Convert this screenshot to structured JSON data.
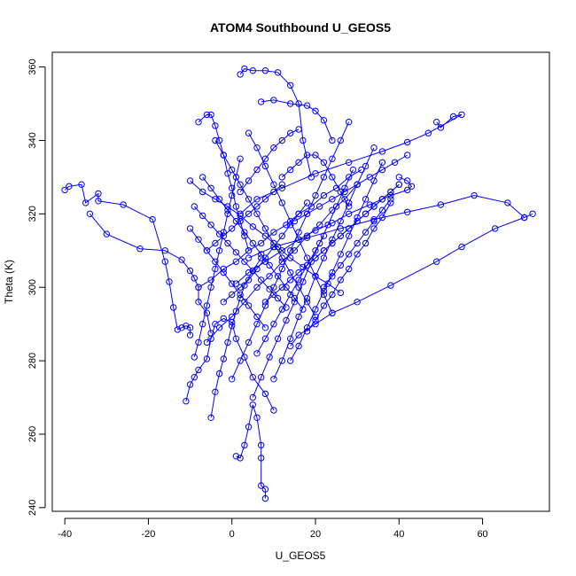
{
  "chart_data": {
    "type": "scatter",
    "title": "ATOM4 Southbound U_GEOS5",
    "xlabel": "U_GEOS5",
    "ylabel": "Theta (K)",
    "xlim": [
      -43,
      76
    ],
    "ylim": [
      239,
      364
    ],
    "xticks": [
      -40,
      -20,
      0,
      20,
      40,
      60
    ],
    "yticks": [
      240,
      260,
      280,
      300,
      320,
      340,
      360
    ],
    "grid": false,
    "marker": "open-circle",
    "connect_points": true,
    "color": "#0000ff",
    "series": [
      {
        "x": [
          -40,
          -39,
          -36,
          -35,
          -32,
          -32,
          -26,
          -19,
          -16,
          -15,
          -14,
          -13,
          -12,
          -11,
          -10,
          -10
        ],
        "y": [
          326.5,
          327.5,
          328,
          323,
          325.5,
          323.5,
          322.5,
          318.5,
          307,
          301.5,
          294.5,
          288.5,
          289,
          289.5,
          289,
          287
        ]
      },
      {
        "x": [
          -34,
          -30,
          -22,
          -16,
          -12,
          -10,
          -9,
          -8,
          -8,
          -6,
          -5
        ],
        "y": [
          320,
          314.5,
          310.5,
          310,
          307.5,
          304.5,
          302.5,
          300,
          296,
          293,
          287.5
        ]
      },
      {
        "x": [
          -11,
          -10,
          -9,
          -8,
          -6,
          -5,
          -4,
          -2,
          0,
          1,
          3,
          5,
          8,
          10
        ],
        "y": [
          269,
          273.5,
          275.5,
          277.5,
          280.5,
          286,
          290,
          291.5,
          290.5,
          286,
          281,
          275.5,
          271,
          266.5
        ]
      },
      {
        "x": [
          -5,
          -4,
          -3,
          -2,
          -1,
          0,
          1,
          2,
          3,
          5,
          7
        ],
        "y": [
          264.5,
          271.5,
          276.5,
          280.5,
          285,
          289.5,
          293.5,
          297,
          300.5,
          304.5,
          308
        ]
      },
      {
        "x": [
          1,
          2,
          3,
          4,
          5,
          6,
          7,
          7,
          7,
          8,
          8
        ],
        "y": [
          254,
          253.5,
          257,
          262,
          268,
          264.5,
          257,
          253.5,
          246,
          245,
          242.5
        ]
      },
      {
        "x": [
          2,
          3,
          5,
          8,
          11,
          14,
          16,
          17,
          19
        ],
        "y": [
          358,
          359.5,
          359,
          359,
          358.5,
          355,
          350,
          340,
          330
        ]
      },
      {
        "x": [
          7,
          10,
          14,
          18,
          20,
          22,
          24
        ],
        "y": [
          350.5,
          351,
          350,
          349.5,
          348,
          345.5,
          340
        ]
      },
      {
        "x": [
          -8,
          -6,
          -5,
          -4,
          -3,
          -2,
          -1,
          0,
          1,
          2,
          3,
          4
        ],
        "y": [
          345,
          347,
          347,
          344,
          340,
          336,
          331,
          327,
          322,
          318,
          314,
          310
        ]
      },
      {
        "x": [
          49,
          50,
          53,
          55,
          47,
          42,
          36,
          28,
          20,
          12,
          6,
          2
        ],
        "y": [
          345,
          343.5,
          346.5,
          347,
          342,
          339.5,
          337,
          334,
          331,
          327,
          324,
          320
        ]
      },
      {
        "x": [
          72,
          70,
          66,
          58,
          50,
          42,
          34,
          26,
          18,
          10,
          4
        ],
        "y": [
          320,
          319,
          323,
          325,
          322.5,
          320.5,
          318.5,
          316,
          313.5,
          311,
          308
        ]
      },
      {
        "x": [
          70,
          63,
          55,
          49,
          38,
          30,
          24,
          20,
          16,
          14
        ],
        "y": [
          319,
          316,
          311,
          307,
          300.5,
          296,
          293,
          290,
          287,
          284
        ]
      },
      {
        "x": [
          40,
          42,
          43,
          42,
          38,
          33,
          28,
          24,
          20,
          16,
          12,
          8,
          4,
          1
        ],
        "y": [
          330,
          329,
          327.5,
          326.5,
          325,
          322.5,
          320,
          317.5,
          315.5,
          313,
          310,
          307,
          304,
          301
        ]
      },
      {
        "x": [
          -10,
          -7,
          -4,
          -1,
          2,
          5,
          8,
          11,
          14,
          17,
          20,
          23,
          26
        ],
        "y": [
          329,
          326,
          324,
          322,
          319.5,
          316.5,
          314,
          311,
          308,
          305.5,
          303,
          301,
          298.5
        ]
      },
      {
        "x": [
          -9,
          -8,
          -7,
          -6,
          -5,
          -4,
          -3,
          -2,
          -1,
          0,
          1,
          2
        ],
        "y": [
          281,
          285,
          290,
          295,
          300,
          305,
          310,
          315,
          320,
          325,
          330,
          335
        ]
      },
      {
        "x": [
          0,
          2,
          4,
          6,
          8,
          10,
          12,
          14,
          16,
          18,
          20,
          22,
          24,
          26,
          28
        ],
        "y": [
          275,
          280,
          285,
          290,
          295,
          300,
          305,
          310,
          315,
          320,
          325,
          330,
          335,
          340,
          345
        ]
      },
      {
        "x": [
          5,
          7,
          9,
          11,
          13,
          15,
          17,
          19,
          21,
          23,
          25,
          27,
          29
        ],
        "y": [
          270,
          275.5,
          281,
          286,
          291,
          296,
          301.5,
          307,
          312,
          317,
          322,
          327,
          332
        ]
      },
      {
        "x": [
          10,
          12,
          14,
          16,
          18,
          20,
          22,
          24,
          26,
          28,
          30,
          32,
          34
        ],
        "y": [
          275,
          280,
          286,
          292,
          297,
          303,
          308,
          313,
          318,
          323,
          328,
          333,
          338
        ]
      },
      {
        "x": [
          14,
          16,
          18,
          20,
          22,
          24,
          26,
          28,
          30,
          32,
          34,
          36
        ],
        "y": [
          280,
          284,
          289,
          294,
          299,
          304,
          309,
          314,
          319,
          324,
          329,
          334
        ]
      },
      {
        "x": [
          -8,
          -5,
          -2,
          1,
          4,
          7,
          10,
          13,
          16,
          19,
          22,
          25,
          28,
          31
        ],
        "y": [
          300,
          302,
          305,
          307,
          310,
          312,
          315,
          317,
          320,
          322,
          325,
          327,
          330,
          332
        ]
      },
      {
        "x": [
          -6,
          -3,
          0,
          3,
          6,
          9,
          12,
          15,
          18,
          21,
          24,
          27,
          30
        ],
        "y": [
          285,
          289,
          292,
          296,
          300,
          303,
          307,
          310,
          314,
          317,
          321,
          324,
          328
        ]
      },
      {
        "x": [
          -4,
          -2,
          0,
          2,
          4,
          6,
          8,
          10,
          12,
          14,
          16,
          18,
          20
        ],
        "y": [
          340,
          336,
          332,
          328,
          324,
          320,
          316,
          312,
          308,
          304,
          300,
          296,
          292
        ]
      },
      {
        "x": [
          4,
          6,
          8,
          10,
          12,
          14,
          16,
          18,
          20,
          22,
          24
        ],
        "y": [
          342,
          338,
          333,
          328,
          323,
          318,
          313,
          308,
          303,
          298,
          293
        ]
      },
      {
        "x": [
          -10,
          -8,
          -6,
          -4,
          -2,
          0,
          2,
          4,
          6,
          8
        ],
        "y": [
          316,
          313,
          310,
          307,
          304,
          301,
          298,
          295,
          292,
          289
        ]
      },
      {
        "x": [
          -9,
          -7,
          -5,
          -3,
          -1,
          1,
          3,
          5,
          7,
          9,
          11,
          13
        ],
        "y": [
          322,
          319.5,
          317,
          314.5,
          312,
          309.5,
          307,
          304.5,
          302,
          299.5,
          297,
          294.5
        ]
      },
      {
        "x": [
          -7,
          -5,
          -3,
          -1,
          1,
          3,
          5,
          7,
          9,
          11,
          13,
          15,
          17
        ],
        "y": [
          330,
          327,
          324,
          321,
          318,
          315,
          312,
          309,
          306,
          303,
          300,
          297,
          294
        ]
      },
      {
        "x": [
          20,
          22,
          24,
          26,
          28,
          30,
          32,
          34,
          36,
          38,
          40
        ],
        "y": [
          308,
          310,
          312,
          314,
          316,
          318,
          320,
          322,
          324,
          326,
          328
        ]
      },
      {
        "x": [
          15,
          18,
          21,
          24,
          27,
          30,
          33,
          36,
          39,
          42
        ],
        "y": [
          318,
          320,
          322,
          324,
          326,
          328,
          330,
          332,
          334,
          336
        ]
      },
      {
        "x": [
          22,
          24,
          26,
          28,
          30,
          32,
          34,
          36,
          38
        ],
        "y": [
          300,
          303,
          306,
          309,
          312,
          315,
          318,
          321,
          324
        ]
      },
      {
        "x": [
          18,
          20,
          22,
          24,
          26,
          28,
          30,
          32,
          34,
          36,
          38
        ],
        "y": [
          288,
          291,
          295,
          298,
          302,
          305,
          309,
          312,
          316,
          319,
          323
        ]
      },
      {
        "x": [
          8,
          10,
          12,
          14,
          16,
          18,
          20,
          22
        ],
        "y": [
          296,
          298,
          300,
          302,
          304,
          306,
          308,
          310
        ]
      },
      {
        "x": [
          12,
          14,
          16,
          18,
          20,
          22,
          24,
          26,
          28
        ],
        "y": [
          330,
          332,
          334,
          336,
          336,
          334,
          330,
          326,
          322
        ]
      },
      {
        "x": [
          -2,
          0,
          2,
          4,
          6,
          8,
          10,
          12,
          14,
          16,
          18
        ],
        "y": [
          296,
          298,
          300,
          302,
          305,
          308,
          311,
          314,
          317,
          320,
          323
        ]
      },
      {
        "x": [
          6,
          8,
          10,
          12,
          14,
          16,
          18,
          20,
          22
        ],
        "y": [
          282,
          286,
          290,
          294,
          298,
          302,
          306,
          310,
          314
        ]
      },
      {
        "x": [
          -6,
          -4,
          -2,
          0,
          2,
          4,
          6,
          8,
          10,
          12
        ],
        "y": [
          310,
          312,
          314,
          316,
          318,
          320,
          322,
          324,
          326,
          328
        ]
      },
      {
        "x": [
          24,
          26,
          28,
          30,
          32,
          34,
          36,
          38,
          40
        ],
        "y": [
          312,
          314,
          316,
          318,
          320,
          322,
          324,
          326,
          328
        ]
      },
      {
        "x": [
          2,
          4,
          6,
          8,
          10,
          12,
          14,
          16
        ],
        "y": [
          326,
          329,
          332,
          335,
          338,
          340,
          342,
          343
        ]
      }
    ]
  }
}
